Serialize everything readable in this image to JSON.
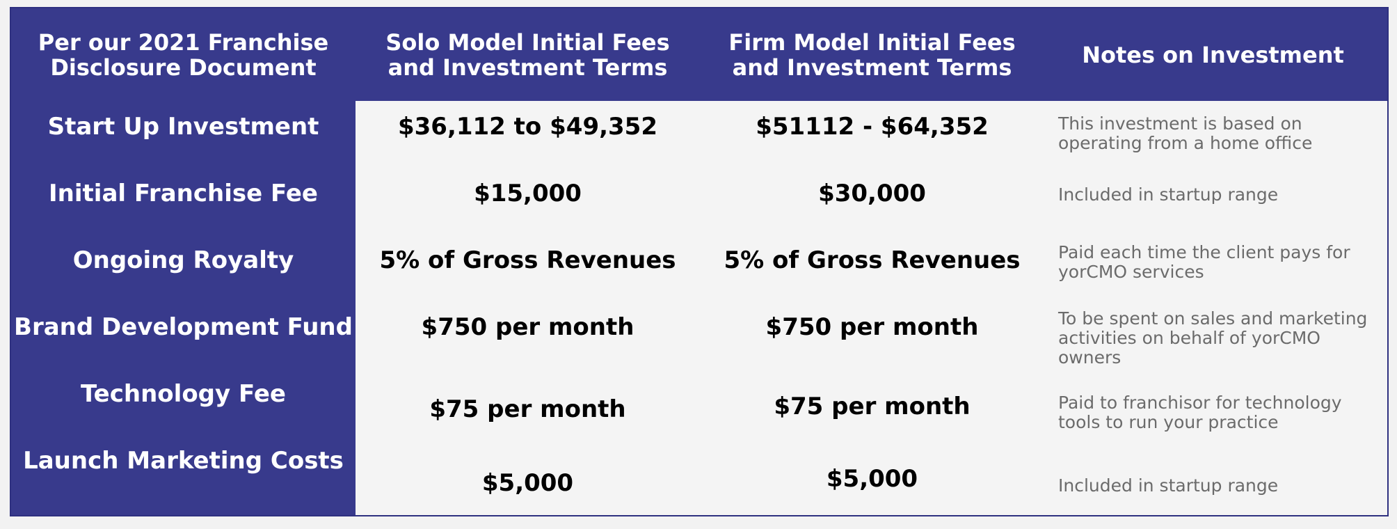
{
  "headers": [
    "Per our 2021 Franchise Disclosure Document",
    "Solo Model Initial Fees and Investment Terms",
    "Firm Model Initial Fees and Investment Terms",
    "Notes on Investment"
  ],
  "rows": [
    {
      "label": "Start Up Investment",
      "solo": "$36,112 to $49,352",
      "firm": "$51112 - $64,352",
      "note": "This investment is based on operating from a home office"
    },
    {
      "label": "Initial Franchise Fee",
      "solo": "$15,000",
      "firm": "$30,000",
      "note": "Included in startup range"
    },
    {
      "label": "Ongoing Royalty",
      "solo": "5% of Gross Revenues",
      "firm": "5% of Gross Revenues",
      "note": "Paid each time the client pays for yorCMO services"
    },
    {
      "label": "Brand Development Fund",
      "solo": "$750 per month",
      "firm": "$750 per month",
      "note": "To be spent on sales and marketing activities on behalf of yorCMO owners"
    },
    {
      "label": "Technology Fee",
      "solo": "$75 per month",
      "firm": "$75 per month",
      "note": "Paid to franchisor for technology tools to run your practice"
    },
    {
      "label": "Launch Marketing Costs",
      "solo": "$5,000",
      "firm": "$5,000",
      "note": "Included in startup range"
    }
  ]
}
